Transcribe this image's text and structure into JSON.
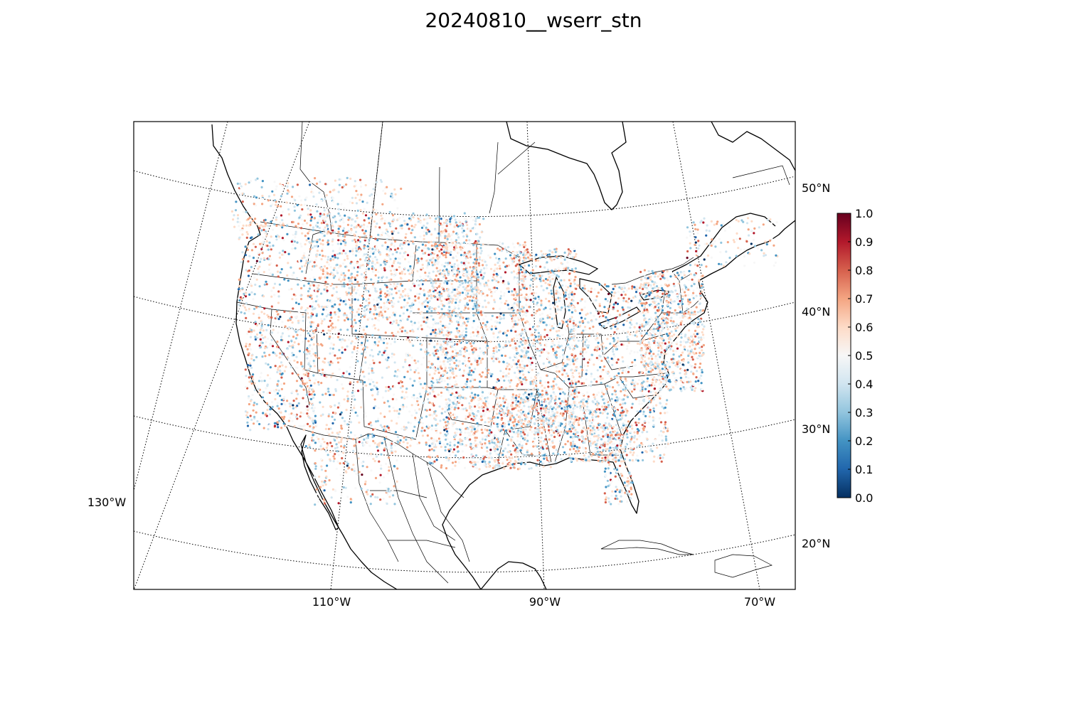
{
  "title": "20240810__wserr_stn",
  "map": {
    "projection": "lambert-conformal",
    "extent": "conus",
    "graticule": "dotted",
    "meridian_labels": [
      "130°W",
      "110°W",
      "90°W",
      "70°W"
    ],
    "parallel_labels": [
      "50°N",
      "40°N",
      "30°N",
      "20°N"
    ]
  },
  "colorbar": {
    "colormap": "RdBu_r",
    "range": [
      0.0,
      1.0
    ],
    "tick_labels": [
      "0.0",
      "0.1",
      "0.2",
      "0.3",
      "0.4",
      "0.5",
      "0.6",
      "0.7",
      "0.8",
      "0.9",
      "1.0"
    ],
    "colors": [
      "#053061",
      "#2166ac",
      "#4393c3",
      "#92c5de",
      "#d1e5f0",
      "#f7f7f7",
      "#fddbc7",
      "#f4a582",
      "#d6604d",
      "#b2182b",
      "#67001f"
    ]
  },
  "stations": {
    "variable": "wserr",
    "date": "20240810",
    "marker": "dot"
  }
}
